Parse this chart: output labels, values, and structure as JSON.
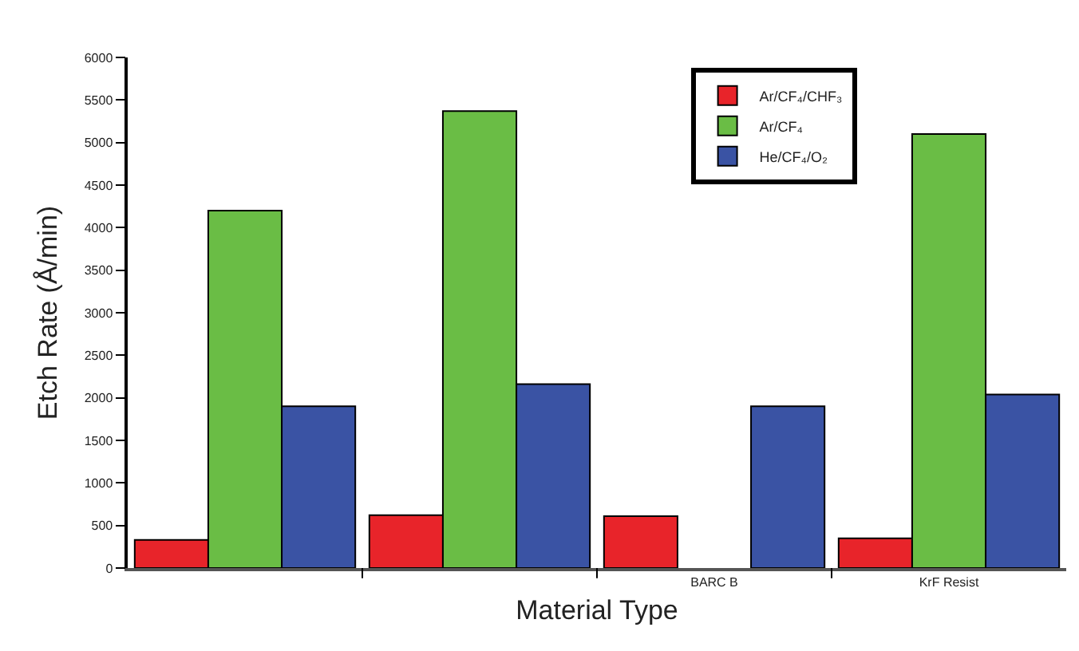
{
  "chart_data": {
    "type": "bar",
    "xlabel": "Material Type",
    "ylabel": "Etch Rate (Å/min)",
    "categories": [
      null,
      null,
      "BARC B",
      "KrF Resist"
    ],
    "series": [
      {
        "name": "Ar/CF₄/CHF₃",
        "color": "#e8242a",
        "values": [
          330,
          620,
          610,
          350
        ]
      },
      {
        "name": "Ar/CF₄",
        "color": "#6abd45",
        "values": [
          4200,
          5370,
          null,
          5100
        ]
      },
      {
        "name": "He/CF₄/O₂",
        "color": "#3a53a4",
        "values": [
          1900,
          2160,
          1900,
          2040
        ]
      }
    ],
    "ylim": [
      0,
      6000
    ],
    "yticks": [
      0,
      500,
      1000,
      1500,
      2000,
      2500,
      3000,
      3500,
      4000,
      4500,
      5000,
      5500,
      6000
    ],
    "grid": false,
    "legend": "top right"
  }
}
